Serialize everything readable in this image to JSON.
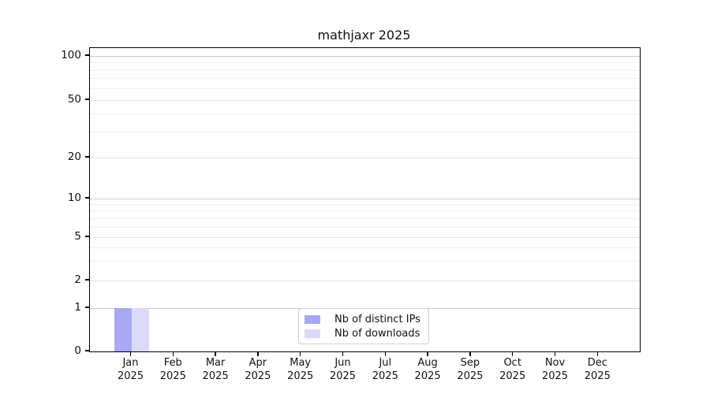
{
  "title": "mathjaxr 2025",
  "colors": {
    "distinct_ips": "#a8a8f4",
    "downloads": "#dadaf8",
    "grid_major": "#c9c9c9",
    "grid_mid": "#e3e3e3",
    "grid_minor": "#f0f0f0",
    "axis": "#000000",
    "legend_border": "#cccccc"
  },
  "legend": {
    "items": [
      {
        "label": "Nb of distinct IPs",
        "color": "#a8a8f4"
      },
      {
        "label": "Nb of downloads",
        "color": "#dadaf8"
      }
    ]
  },
  "chart_data": {
    "type": "bar",
    "title": "mathjaxr 2025",
    "categories": [
      "Jan 2025",
      "Feb 2025",
      "Mar 2025",
      "Apr 2025",
      "May 2025",
      "Jun 2025",
      "Jul 2025",
      "Aug 2025",
      "Sep 2025",
      "Oct 2025",
      "Nov 2025",
      "Dec 2025"
    ],
    "series": [
      {
        "name": "Nb of distinct IPs",
        "color": "#a8a8f4",
        "values": [
          1,
          0,
          0,
          0,
          0,
          0,
          0,
          0,
          0,
          0,
          0,
          0
        ]
      },
      {
        "name": "Nb of downloads",
        "color": "#dadaf8",
        "values": [
          1,
          0,
          0,
          0,
          0,
          0,
          0,
          0,
          0,
          0,
          0,
          0
        ]
      }
    ],
    "xlabel": "",
    "ylabel": "",
    "yscale": "log-like (linear 0-1, log above)",
    "ylim": [
      0,
      115
    ],
    "y_ticks": [
      0,
      1,
      2,
      5,
      10,
      20,
      50,
      100
    ],
    "y_minor_ticks": [
      3,
      4,
      6,
      7,
      8,
      9,
      30,
      40,
      60,
      70,
      80,
      90
    ],
    "grid": "horizontal",
    "legend_position": "lower center"
  }
}
